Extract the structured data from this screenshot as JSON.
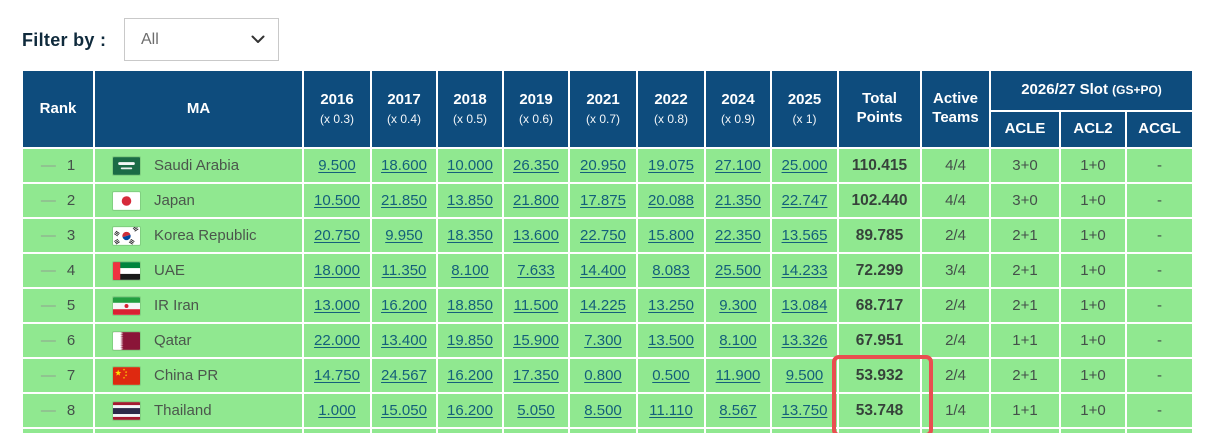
{
  "filter": {
    "label": "Filter by :",
    "value": "All"
  },
  "colors": {
    "header_bg": "#0E4C7D",
    "row_bg": "#90E890",
    "link": "#14607A",
    "highlight_box": "#E94E50"
  },
  "table": {
    "headers": {
      "rank": "Rank",
      "ma": "MA",
      "years": [
        {
          "year": "2016",
          "multiplier": "(x 0.3)"
        },
        {
          "year": "2017",
          "multiplier": "(x 0.4)"
        },
        {
          "year": "2018",
          "multiplier": "(x 0.5)"
        },
        {
          "year": "2019",
          "multiplier": "(x 0.6)"
        },
        {
          "year": "2021",
          "multiplier": "(x 0.7)"
        },
        {
          "year": "2022",
          "multiplier": "(x 0.8)"
        },
        {
          "year": "2024",
          "multiplier": "(x 0.9)"
        },
        {
          "year": "2025",
          "multiplier": "(x 1)"
        }
      ],
      "total_points": "Total Points",
      "active_teams": "Active Teams",
      "slot_group": {
        "title": "2026/27 Slot",
        "suffix": "(GS+PO)",
        "columns": [
          "ACLE",
          "ACL2",
          "ACGL"
        ]
      }
    },
    "rows": [
      {
        "movement": "—",
        "rank": "1",
        "country": "Saudi Arabia",
        "flag_icon": "flag-saudi-arabia",
        "points": [
          "9.500",
          "18.600",
          "10.000",
          "26.350",
          "20.950",
          "19.075",
          "27.100",
          "25.000"
        ],
        "total": "110.415",
        "active_teams": "4/4",
        "acle": "3+0",
        "acl2": "1+0",
        "acgl": "-"
      },
      {
        "movement": "—",
        "rank": "2",
        "country": "Japan",
        "flag_icon": "flag-japan",
        "points": [
          "10.500",
          "21.850",
          "13.850",
          "21.800",
          "17.875",
          "20.088",
          "21.350",
          "22.747"
        ],
        "total": "102.440",
        "active_teams": "4/4",
        "acle": "3+0",
        "acl2": "1+0",
        "acgl": "-"
      },
      {
        "movement": "—",
        "rank": "3",
        "country": "Korea Republic",
        "flag_icon": "flag-korea-republic",
        "points": [
          "20.750",
          "9.950",
          "18.350",
          "13.600",
          "22.750",
          "15.800",
          "22.350",
          "13.565"
        ],
        "total": "89.785",
        "active_teams": "2/4",
        "acle": "2+1",
        "acl2": "1+0",
        "acgl": "-"
      },
      {
        "movement": "—",
        "rank": "4",
        "country": "UAE",
        "flag_icon": "flag-uae",
        "points": [
          "18.000",
          "11.350",
          "8.100",
          "7.633",
          "14.400",
          "8.083",
          "25.500",
          "14.233"
        ],
        "total": "72.299",
        "active_teams": "3/4",
        "acle": "2+1",
        "acl2": "1+0",
        "acgl": "-"
      },
      {
        "movement": "—",
        "rank": "5",
        "country": "IR Iran",
        "flag_icon": "flag-ir-iran",
        "points": [
          "13.000",
          "16.200",
          "18.850",
          "11.500",
          "14.225",
          "13.250",
          "9.300",
          "13.084"
        ],
        "total": "68.717",
        "active_teams": "2/4",
        "acle": "2+1",
        "acl2": "1+0",
        "acgl": "-"
      },
      {
        "movement": "—",
        "rank": "6",
        "country": "Qatar",
        "flag_icon": "flag-qatar",
        "points": [
          "22.000",
          "13.400",
          "19.850",
          "15.900",
          "7.300",
          "13.500",
          "8.100",
          "13.326"
        ],
        "total": "67.951",
        "active_teams": "2/4",
        "acle": "1+1",
        "acl2": "1+0",
        "acgl": "-"
      },
      {
        "movement": "—",
        "rank": "7",
        "country": "China PR",
        "flag_icon": "flag-china-pr",
        "points": [
          "14.750",
          "24.567",
          "16.200",
          "17.350",
          "0.800",
          "0.500",
          "11.900",
          "9.500"
        ],
        "total": "53.932",
        "active_teams": "2/4",
        "acle": "2+1",
        "acl2": "1+0",
        "acgl": "-"
      },
      {
        "movement": "—",
        "rank": "8",
        "country": "Thailand",
        "flag_icon": "flag-thailand",
        "points": [
          "1.000",
          "15.050",
          "16.200",
          "5.050",
          "8.500",
          "11.110",
          "8.567",
          "13.750"
        ],
        "total": "53.748",
        "active_teams": "1/4",
        "acle": "1+1",
        "acl2": "1+0",
        "acgl": "-"
      }
    ]
  }
}
